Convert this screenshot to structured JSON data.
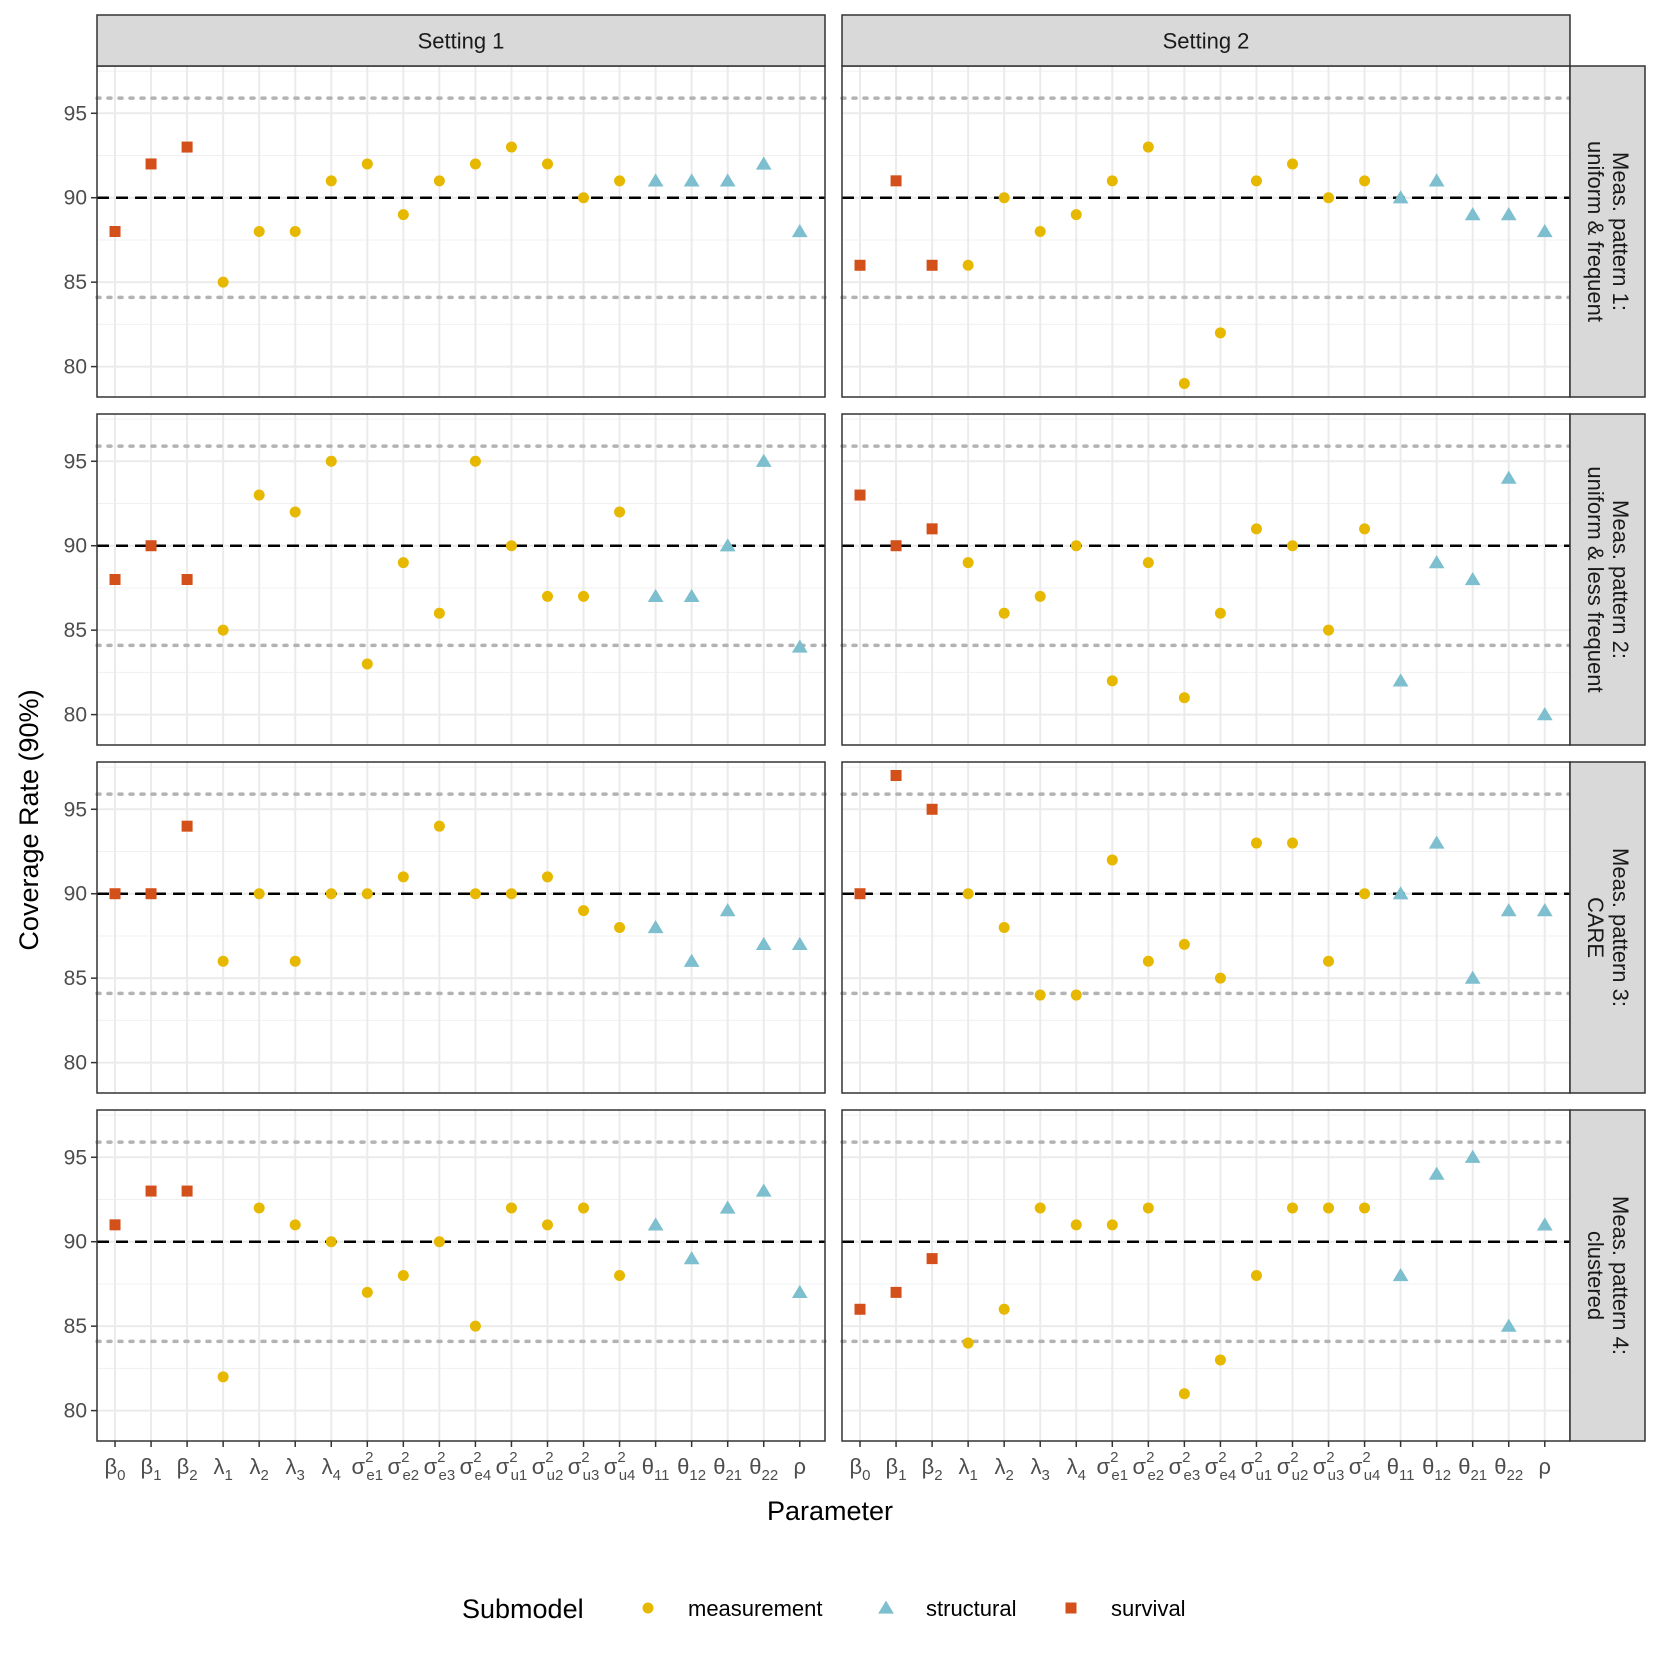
{
  "chart_data": {
    "type": "scatter",
    "ylabel": "Coverage Rate (90%)",
    "xlabel": "Parameter",
    "ylim": [
      78.2,
      97.8
    ],
    "yticks": [
      80,
      85,
      90,
      95
    ],
    "reference_line": 90,
    "band_lines": [
      84.1,
      95.9
    ],
    "grid": true,
    "legend_position": "bottom",
    "legend": {
      "title": "Submodel",
      "entries": [
        {
          "name": "measurement",
          "shape": "circle"
        },
        {
          "name": "structural",
          "shape": "triangle"
        },
        {
          "name": "survival",
          "shape": "square"
        }
      ]
    },
    "colors": {
      "measurement": "#E7B800",
      "structural": "#7DBFCE",
      "survival": "#D3501A",
      "strip_fill": "#d9d9d9",
      "reference": "#000000",
      "band": "#b3b3b3"
    },
    "columns": [
      "Setting 1",
      "Setting 2"
    ],
    "rows": [
      [
        "Meas. pattern 1:",
        "uniform & frequent"
      ],
      [
        "Meas. pattern 2:",
        "uniform & less frequent"
      ],
      [
        "Meas. pattern 3:",
        "CARE"
      ],
      [
        "Meas. pattern 4:",
        "clustered"
      ]
    ],
    "parameters": [
      {
        "base": "β",
        "sub": "0",
        "sup": ""
      },
      {
        "base": "β",
        "sub": "1",
        "sup": ""
      },
      {
        "base": "β",
        "sub": "2",
        "sup": ""
      },
      {
        "base": "λ",
        "sub": "1",
        "sup": ""
      },
      {
        "base": "λ",
        "sub": "2",
        "sup": ""
      },
      {
        "base": "λ",
        "sub": "3",
        "sup": ""
      },
      {
        "base": "λ",
        "sub": "4",
        "sup": ""
      },
      {
        "base": "σ",
        "sub": "e1",
        "sup": "2"
      },
      {
        "base": "σ",
        "sub": "e2",
        "sup": "2"
      },
      {
        "base": "σ",
        "sub": "e3",
        "sup": "2"
      },
      {
        "base": "σ",
        "sub": "e4",
        "sup": "2"
      },
      {
        "base": "σ",
        "sub": "u1",
        "sup": "2"
      },
      {
        "base": "σ",
        "sub": "u2",
        "sup": "2"
      },
      {
        "base": "σ",
        "sub": "u3",
        "sup": "2"
      },
      {
        "base": "σ",
        "sub": "u4",
        "sup": "2"
      },
      {
        "base": "θ",
        "sub": "11",
        "sup": ""
      },
      {
        "base": "θ",
        "sub": "12",
        "sup": ""
      },
      {
        "base": "θ",
        "sub": "21",
        "sup": ""
      },
      {
        "base": "θ",
        "sub": "22",
        "sup": ""
      },
      {
        "base": "ρ",
        "sub": "",
        "sup": ""
      }
    ],
    "submodel_of_parameter": [
      "survival",
      "survival",
      "survival",
      "measurement",
      "measurement",
      "measurement",
      "measurement",
      "measurement",
      "measurement",
      "measurement",
      "measurement",
      "measurement",
      "measurement",
      "measurement",
      "measurement",
      "structural",
      "structural",
      "structural",
      "structural",
      "structural"
    ],
    "panels": [
      {
        "row": 0,
        "col": 0,
        "values": [
          88,
          92,
          93,
          85,
          88,
          88,
          91,
          92,
          89,
          91,
          92,
          93,
          92,
          90,
          91,
          91,
          91,
          91,
          92,
          88
        ]
      },
      {
        "row": 0,
        "col": 1,
        "values": [
          86,
          91,
          86,
          86,
          90,
          88,
          89,
          91,
          93,
          79,
          82,
          91,
          92,
          90,
          91,
          90,
          91,
          89,
          89,
          88
        ]
      },
      {
        "row": 1,
        "col": 0,
        "values": [
          88,
          90,
          88,
          85,
          93,
          92,
          95,
          83,
          89,
          86,
          95,
          90,
          87,
          87,
          92,
          87,
          87,
          90,
          95,
          84
        ]
      },
      {
        "row": 1,
        "col": 1,
        "values": [
          93,
          90,
          91,
          89,
          86,
          87,
          90,
          82,
          89,
          81,
          86,
          91,
          90,
          85,
          91,
          82,
          89,
          88,
          94,
          80
        ]
      },
      {
        "row": 2,
        "col": 0,
        "values": [
          90,
          90,
          94,
          86,
          90,
          86,
          90,
          90,
          91,
          94,
          90,
          90,
          91,
          89,
          88,
          88,
          86,
          89,
          87,
          87
        ]
      },
      {
        "row": 2,
        "col": 1,
        "values": [
          90,
          97,
          95,
          90,
          88,
          84,
          84,
          92,
          86,
          87,
          85,
          93,
          93,
          86,
          90,
          90,
          93,
          85,
          89,
          89
        ]
      },
      {
        "row": 3,
        "col": 0,
        "values": [
          91,
          93,
          93,
          82,
          92,
          91,
          90,
          87,
          88,
          90,
          85,
          92,
          91,
          92,
          88,
          91,
          89,
          92,
          93,
          87
        ]
      },
      {
        "row": 3,
        "col": 1,
        "values": [
          86,
          87,
          89,
          84,
          86,
          92,
          91,
          91,
          92,
          81,
          83,
          88,
          92,
          92,
          92,
          88,
          94,
          95,
          85,
          91
        ]
      }
    ]
  }
}
